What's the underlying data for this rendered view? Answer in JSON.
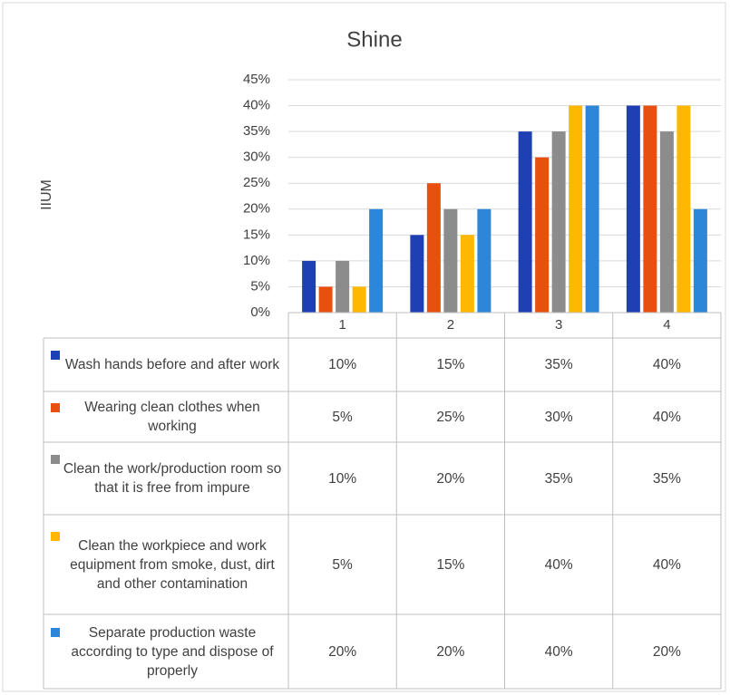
{
  "chart_data": {
    "type": "bar",
    "title": "Shine",
    "y_label": "IIUM",
    "categories": [
      "1",
      "2",
      "3",
      "4"
    ],
    "series": [
      {
        "name": "Wash hands before and after work",
        "color": "#1f3fb5",
        "values": [
          10,
          15,
          35,
          40
        ],
        "value_labels": [
          "10%",
          "15%",
          "35%",
          "40%"
        ]
      },
      {
        "name": "Wearing clean clothes when working",
        "color": "#e8500f",
        "values": [
          5,
          25,
          30,
          40
        ],
        "value_labels": [
          "5%",
          "25%",
          "30%",
          "40%"
        ]
      },
      {
        "name": "Clean the work/production room so that it is free from impure",
        "color": "#8c8c8c",
        "values": [
          10,
          20,
          35,
          35
        ],
        "value_labels": [
          "10%",
          "20%",
          "35%",
          "35%"
        ]
      },
      {
        "name": "Clean the workpiece and work equipment from smoke, dust, dirt and other contamination",
        "color": "#ffb800",
        "values": [
          5,
          15,
          40,
          40
        ],
        "value_labels": [
          "5%",
          "15%",
          "40%",
          "40%"
        ]
      },
      {
        "name": "Separate production waste according to type and dispose of properly",
        "color": "#2e86d9",
        "values": [
          20,
          20,
          40,
          20
        ],
        "value_labels": [
          "20%",
          "20%",
          "40%",
          "20%"
        ]
      }
    ],
    "ylim": [
      0,
      45
    ],
    "yticks": [
      {
        "value": 0,
        "label": "0%"
      },
      {
        "value": 5,
        "label": "5%"
      },
      {
        "value": 10,
        "label": "10%"
      },
      {
        "value": 15,
        "label": "15%"
      },
      {
        "value": 20,
        "label": "20%"
      },
      {
        "value": 25,
        "label": "25%"
      },
      {
        "value": 30,
        "label": "30%"
      },
      {
        "value": 35,
        "label": "35%"
      },
      {
        "value": 40,
        "label": "40%"
      },
      {
        "value": 45,
        "label": "45%"
      }
    ],
    "grid": true
  }
}
